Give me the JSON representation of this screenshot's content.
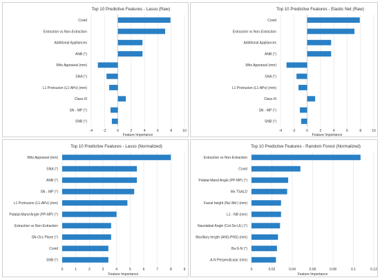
{
  "chart_data": [
    {
      "type": "bar",
      "orientation": "horizontal",
      "title": "Top 10 Predictive Features - Lasso (Raw)",
      "xlabel": "Feature Importance",
      "ylabel": "",
      "categories": [
        "Covid",
        "Extraction vs Non-Extraction",
        "Additional Appliances",
        "ANB (°)",
        "Wits Appraisal (mm)",
        "SNA (°)",
        "L1 Protrusion (L1-APo) (mm)",
        "Class III",
        "SN - MP (°)",
        "SNB (°)"
      ],
      "values": [
        7.9,
        7.1,
        3.7,
        3.7,
        -3.0,
        -1.7,
        -1.3,
        1.2,
        -1.1,
        -0.9
      ],
      "xlim": [
        -4,
        10
      ],
      "xticks": [
        "-4",
        "-2",
        "0",
        "2",
        "4",
        "6",
        "8",
        "10"
      ],
      "grid": true,
      "color": "#2a80c5"
    },
    {
      "type": "bar",
      "orientation": "horizontal",
      "title": "Top 10 Predictive Features - Elastic Net (Raw)",
      "xlabel": "Feature Importance",
      "ylabel": "",
      "categories": [
        "Covid",
        "Extraction vs Non-Extraction",
        "Additional Appliances",
        "ANB (°)",
        "Wits Appraisal (mm)",
        "SNA (°)",
        "L1 Protrusion (L1-APo) (mm)",
        "Class III",
        "SN - MP (°)",
        "SNB (°)"
      ],
      "values": [
        7.9,
        7.1,
        3.6,
        3.6,
        -3.1,
        -1.6,
        -1.3,
        1.2,
        -1.1,
        -0.9
      ],
      "xlim": [
        -4,
        10
      ],
      "xticks": [
        "-4",
        "-2",
        "0",
        "2",
        "4",
        "6",
        "8",
        "10"
      ],
      "grid": true,
      "color": "#2a80c5"
    },
    {
      "type": "bar",
      "orientation": "horizontal",
      "title": "Top 10 Predictive Features - Lasso (Normalized)",
      "xlabel": "Feature Importance",
      "ylabel": "",
      "categories": [
        "Wits Appraisal (mm)",
        "SNA (°)",
        "ANB (°)",
        "SN - MP (°)",
        "L1 Protrusion (L1-APo) (mm)",
        "Palatal-Mand Angle (PP-MP) (°)",
        "Extraction vs Non-Extraction",
        "SN-Occ Plane (°)",
        "Covid",
        "SNB (°)"
      ],
      "values": [
        8.0,
        5.5,
        5.5,
        5.3,
        4.8,
        4.0,
        3.6,
        3.6,
        3.4,
        3.4
      ],
      "xlim": [
        0,
        9
      ],
      "xticks": [
        "0",
        "1",
        "2",
        "3",
        "4",
        "5",
        "6",
        "7",
        "8",
        "9"
      ],
      "grid": true,
      "color": "#2a80c5"
    },
    {
      "type": "bar",
      "orientation": "horizontal",
      "title": "Top 10 Predictive Features - Random Forest (Normalized)",
      "xlabel": "Feature Importance",
      "ylabel": "",
      "categories": [
        "Extraction vs Non-Extraction",
        "Covid",
        "Palatal-Mand Angle (PP-MP) (°)",
        "Mx TSALD",
        "Facial height (Na'-Me') (mm)",
        "L1 - NB (mm)",
        "Nasolabial Angle (Col-Sn-UL) (°)",
        "Maxillary length (ANS-PNS) (mm)",
        "Ba-S-N (°)",
        "A-N Perpendicular (mm)"
      ],
      "values": [
        0.107,
        0.048,
        0.036,
        0.035,
        0.029,
        0.029,
        0.028,
        0.026,
        0.025,
        0.024
      ],
      "xlim": [
        0,
        0.12
      ],
      "xticks": [
        "0",
        "0.02",
        "0.04",
        "0.06",
        "0.08",
        "0.1",
        "0.12"
      ],
      "grid": true,
      "color": "#2a80c5"
    }
  ]
}
